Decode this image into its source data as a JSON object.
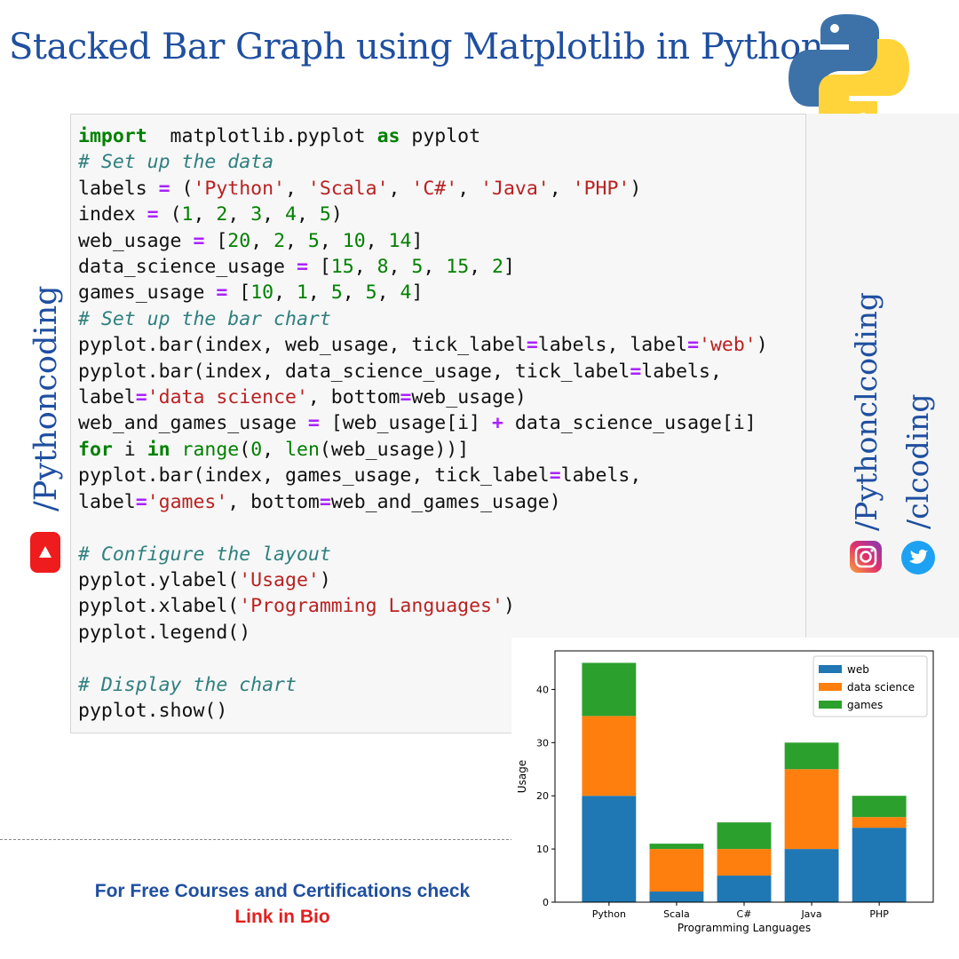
{
  "title": "Stacked Bar Graph using Matplotlib in Python",
  "social": {
    "left_handle": "/Pythoncoding",
    "right_handle_1": "/Pythonclcoding",
    "right_handle_2": "/clcoding",
    "icons": [
      "youtube-icon",
      "instagram-icon",
      "twitter-icon",
      "python-logo"
    ]
  },
  "code_lines": [
    [
      [
        "kw",
        "import"
      ],
      [
        "",
        "  matplotlib.pyplot "
      ],
      [
        "kw",
        "as"
      ],
      [
        "",
        " pyplot"
      ]
    ],
    [
      [
        "cm",
        "# Set up the data"
      ]
    ],
    [
      [
        "",
        "labels "
      ],
      [
        "op",
        "="
      ],
      [
        "",
        " ("
      ],
      [
        "st",
        "'Python'"
      ],
      [
        "",
        ", "
      ],
      [
        "st",
        "'Scala'"
      ],
      [
        "",
        ", "
      ],
      [
        "st",
        "'C#'"
      ],
      [
        "",
        ", "
      ],
      [
        "st",
        "'Java'"
      ],
      [
        "",
        ", "
      ],
      [
        "st",
        "'PHP'"
      ],
      [
        "",
        ")"
      ]
    ],
    [
      [
        "",
        "index "
      ],
      [
        "op",
        "="
      ],
      [
        "",
        " ("
      ],
      [
        "nm",
        "1"
      ],
      [
        "",
        ", "
      ],
      [
        "nm",
        "2"
      ],
      [
        "",
        ", "
      ],
      [
        "nm",
        "3"
      ],
      [
        "",
        ", "
      ],
      [
        "nm",
        "4"
      ],
      [
        "",
        ", "
      ],
      [
        "nm",
        "5"
      ],
      [
        "",
        ")"
      ]
    ],
    [
      [
        "",
        "web_usage "
      ],
      [
        "op",
        "="
      ],
      [
        "",
        " ["
      ],
      [
        "nm",
        "20"
      ],
      [
        "",
        ", "
      ],
      [
        "nm",
        "2"
      ],
      [
        "",
        ", "
      ],
      [
        "nm",
        "5"
      ],
      [
        "",
        ", "
      ],
      [
        "nm",
        "10"
      ],
      [
        "",
        ", "
      ],
      [
        "nm",
        "14"
      ],
      [
        "",
        "]"
      ]
    ],
    [
      [
        "",
        "data_science_usage "
      ],
      [
        "op",
        "="
      ],
      [
        "",
        " ["
      ],
      [
        "nm",
        "15"
      ],
      [
        "",
        ", "
      ],
      [
        "nm",
        "8"
      ],
      [
        "",
        ", "
      ],
      [
        "nm",
        "5"
      ],
      [
        "",
        ", "
      ],
      [
        "nm",
        "15"
      ],
      [
        "",
        ", "
      ],
      [
        "nm",
        "2"
      ],
      [
        "",
        "]"
      ]
    ],
    [
      [
        "",
        "games_usage "
      ],
      [
        "op",
        "="
      ],
      [
        "",
        " ["
      ],
      [
        "nm",
        "10"
      ],
      [
        "",
        ", "
      ],
      [
        "nm",
        "1"
      ],
      [
        "",
        ", "
      ],
      [
        "nm",
        "5"
      ],
      [
        "",
        ", "
      ],
      [
        "nm",
        "5"
      ],
      [
        "",
        ", "
      ],
      [
        "nm",
        "4"
      ],
      [
        "",
        "]"
      ]
    ],
    [
      [
        "cm",
        "# Set up the bar chart"
      ]
    ],
    [
      [
        "",
        "pyplot.bar(index, web_usage, tick_label"
      ],
      [
        "op",
        "="
      ],
      [
        "",
        "labels, label"
      ],
      [
        "op",
        "="
      ],
      [
        "st",
        "'web'"
      ],
      [
        "",
        ")"
      ]
    ],
    [
      [
        "",
        "pyplot.bar(index, data_science_usage, tick_label"
      ],
      [
        "op",
        "="
      ],
      [
        "",
        "labels,"
      ]
    ],
    [
      [
        "",
        "label"
      ],
      [
        "op",
        "="
      ],
      [
        "st",
        "'data science'"
      ],
      [
        "",
        ", bottom"
      ],
      [
        "op",
        "="
      ],
      [
        "",
        "web_usage)"
      ]
    ],
    [
      [
        "",
        "web_and_games_usage "
      ],
      [
        "op",
        "="
      ],
      [
        "",
        " [web_usage[i] "
      ],
      [
        "op",
        "+"
      ],
      [
        "",
        " data_science_usage[i]"
      ]
    ],
    [
      [
        "kw",
        "for"
      ],
      [
        "",
        " i "
      ],
      [
        "kw",
        "in"
      ],
      [
        "",
        " "
      ],
      [
        "bi",
        "range"
      ],
      [
        "",
        "("
      ],
      [
        "nm",
        "0"
      ],
      [
        "",
        ", "
      ],
      [
        "bi",
        "len"
      ],
      [
        "",
        "(web_usage))]"
      ]
    ],
    [
      [
        "",
        "pyplot.bar(index, games_usage, tick_label"
      ],
      [
        "op",
        "="
      ],
      [
        "",
        "labels,"
      ]
    ],
    [
      [
        "",
        "label"
      ],
      [
        "op",
        "="
      ],
      [
        "st",
        "'games'"
      ],
      [
        "",
        ", bottom"
      ],
      [
        "op",
        "="
      ],
      [
        "",
        "web_and_games_usage)"
      ]
    ],
    [],
    [
      [
        "cm",
        "# Configure the layout"
      ]
    ],
    [
      [
        "",
        "pyplot.ylabel("
      ],
      [
        "st",
        "'Usage'"
      ],
      [
        "",
        ")"
      ]
    ],
    [
      [
        "",
        "pyplot.xlabel("
      ],
      [
        "st",
        "'Programming Languages'"
      ],
      [
        "",
        ")"
      ]
    ],
    [
      [
        "",
        "pyplot.legend()"
      ]
    ],
    [],
    [
      [
        "cm",
        "# Display the chart"
      ]
    ],
    [
      [
        "",
        "pyplot.show()"
      ]
    ]
  ],
  "promo": {
    "line1": "For Free Courses and Certifications check",
    "line2": "Link in Bio"
  },
  "colors": {
    "web": "#1f77b4",
    "data_science": "#ff7f0e",
    "games": "#2ca02c",
    "title_blue": "#1f4fa0"
  },
  "chart_data": {
    "type": "bar",
    "stacked": true,
    "categories": [
      "Python",
      "Scala",
      "C#",
      "Java",
      "PHP"
    ],
    "series": [
      {
        "name": "web",
        "values": [
          20,
          2,
          5,
          10,
          14
        ]
      },
      {
        "name": "data science",
        "values": [
          15,
          8,
          5,
          15,
          2
        ]
      },
      {
        "name": "games",
        "values": [
          10,
          1,
          5,
          5,
          4
        ]
      }
    ],
    "xlabel": "Programming Languages",
    "ylabel": "Usage",
    "ylim": [
      0,
      47.25
    ],
    "yticks": [
      0,
      10,
      20,
      30,
      40
    ],
    "legend_position": "upper-right",
    "grid": false
  }
}
